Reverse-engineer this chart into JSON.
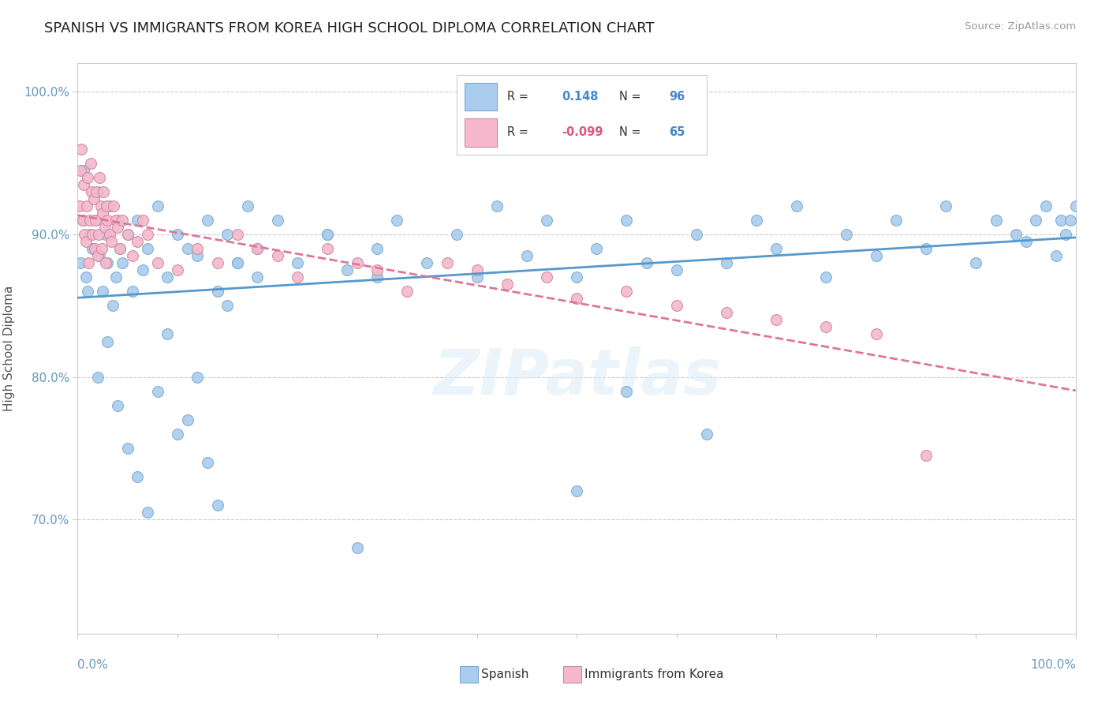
{
  "title": "SPANISH VS IMMIGRANTS FROM KOREA HIGH SCHOOL DIPLOMA CORRELATION CHART",
  "source": "Source: ZipAtlas.com",
  "ylabel": "High School Diploma",
  "title_color": "#222222",
  "source_color": "#999999",
  "background_color": "#ffffff",
  "grid_color": "#cccccc",
  "blue_color": "#aaccee",
  "pink_color": "#f5b8cc",
  "blue_edge_color": "#7aabcc",
  "pink_edge_color": "#cc8899",
  "blue_line_color": "#5599cc",
  "pink_line_color": "#dd7799",
  "axis_tick_color": "#6699bb",
  "ylabel_color": "#555555",
  "legend_R_blue_color": "#4488cc",
  "legend_R_pink_color": "#dd5577",
  "legend_N_color": "#4488cc",
  "watermark_color": "#ddeeff",
  "blue_R": 0.148,
  "blue_N": 96,
  "pink_R": -0.099,
  "pink_N": 65,
  "xlim": [
    0,
    100
  ],
  "ylim": [
    62,
    102
  ],
  "yticks": [
    70,
    80,
    90,
    100
  ],
  "ytick_labels": [
    "70.0%",
    "80.0%",
    "90.0%",
    "100.0%"
  ],
  "blue_x": [
    0.3,
    0.5,
    0.6,
    0.8,
    1.0,
    1.2,
    1.5,
    1.8,
    2.0,
    2.2,
    2.5,
    2.8,
    3.0,
    3.2,
    3.5,
    3.8,
    4.0,
    4.2,
    4.5,
    5.0,
    5.5,
    6.0,
    6.5,
    7.0,
    8.0,
    9.0,
    10.0,
    11.0,
    12.0,
    13.0,
    14.0,
    15.0,
    16.0,
    17.0,
    18.0,
    20.0,
    22.0,
    25.0,
    27.0,
    30.0,
    32.0,
    35.0,
    38.0,
    40.0,
    42.0,
    45.0,
    47.0,
    50.0,
    52.0,
    55.0,
    57.0,
    60.0,
    62.0,
    65.0,
    68.0,
    70.0,
    72.0,
    75.0,
    77.0,
    80.0,
    82.0,
    85.0,
    87.0,
    90.0,
    92.0,
    94.0,
    95.0,
    96.0,
    97.0,
    98.0,
    98.5,
    99.0,
    99.5,
    100.0,
    2.0,
    3.0,
    4.0,
    5.0,
    6.0,
    7.0,
    8.0,
    9.0,
    10.0,
    11.0,
    12.0,
    13.0,
    14.0,
    15.0,
    28.0,
    50.0,
    55.0,
    63.0,
    30.0,
    25.0,
    18.0,
    16.0
  ],
  "blue_y": [
    88.0,
    91.0,
    94.5,
    87.0,
    86.0,
    90.0,
    89.0,
    91.0,
    93.0,
    88.5,
    86.0,
    90.0,
    88.0,
    92.0,
    85.0,
    87.0,
    91.0,
    89.0,
    88.0,
    90.0,
    86.0,
    91.0,
    87.5,
    89.0,
    92.0,
    87.0,
    90.0,
    89.0,
    88.5,
    91.0,
    86.0,
    90.0,
    88.0,
    92.0,
    87.0,
    91.0,
    88.0,
    90.0,
    87.5,
    89.0,
    91.0,
    88.0,
    90.0,
    87.0,
    92.0,
    88.5,
    91.0,
    87.0,
    89.0,
    91.0,
    88.0,
    87.5,
    90.0,
    88.0,
    91.0,
    89.0,
    92.0,
    87.0,
    90.0,
    88.5,
    91.0,
    89.0,
    92.0,
    88.0,
    91.0,
    90.0,
    89.5,
    91.0,
    92.0,
    88.5,
    91.0,
    90.0,
    91.0,
    92.0,
    80.0,
    82.5,
    78.0,
    75.0,
    73.0,
    70.5,
    79.0,
    83.0,
    76.0,
    77.0,
    80.0,
    74.0,
    71.0,
    85.0,
    68.0,
    72.0,
    79.0,
    76.0,
    87.0,
    90.0,
    89.0,
    88.0
  ],
  "pink_x": [
    0.2,
    0.3,
    0.4,
    0.5,
    0.6,
    0.7,
    0.8,
    0.9,
    1.0,
    1.1,
    1.2,
    1.3,
    1.4,
    1.5,
    1.6,
    1.7,
    1.8,
    1.9,
    2.0,
    2.1,
    2.2,
    2.3,
    2.4,
    2.5,
    2.6,
    2.7,
    2.8,
    2.9,
    3.0,
    3.2,
    3.4,
    3.6,
    3.8,
    4.0,
    4.2,
    4.5,
    5.0,
    5.5,
    6.0,
    6.5,
    7.0,
    8.0,
    10.0,
    12.0,
    14.0,
    16.0,
    18.0,
    20.0,
    22.0,
    25.0,
    28.0,
    30.0,
    33.0,
    37.0,
    40.0,
    43.0,
    47.0,
    50.0,
    55.0,
    60.0,
    65.0,
    70.0,
    75.0,
    80.0,
    85.0
  ],
  "pink_y": [
    92.0,
    94.5,
    96.0,
    91.0,
    93.5,
    90.0,
    89.5,
    92.0,
    94.0,
    88.0,
    91.0,
    95.0,
    93.0,
    90.0,
    92.5,
    89.0,
    91.0,
    93.0,
    88.5,
    90.0,
    94.0,
    92.0,
    89.0,
    91.5,
    93.0,
    90.5,
    88.0,
    92.0,
    91.0,
    90.0,
    89.5,
    92.0,
    91.0,
    90.5,
    89.0,
    91.0,
    90.0,
    88.5,
    89.5,
    91.0,
    90.0,
    88.0,
    87.5,
    89.0,
    88.0,
    90.0,
    89.0,
    88.5,
    87.0,
    89.0,
    88.0,
    87.5,
    86.0,
    88.0,
    87.5,
    86.5,
    87.0,
    85.5,
    86.0,
    85.0,
    84.5,
    84.0,
    83.5,
    83.0,
    74.5
  ]
}
